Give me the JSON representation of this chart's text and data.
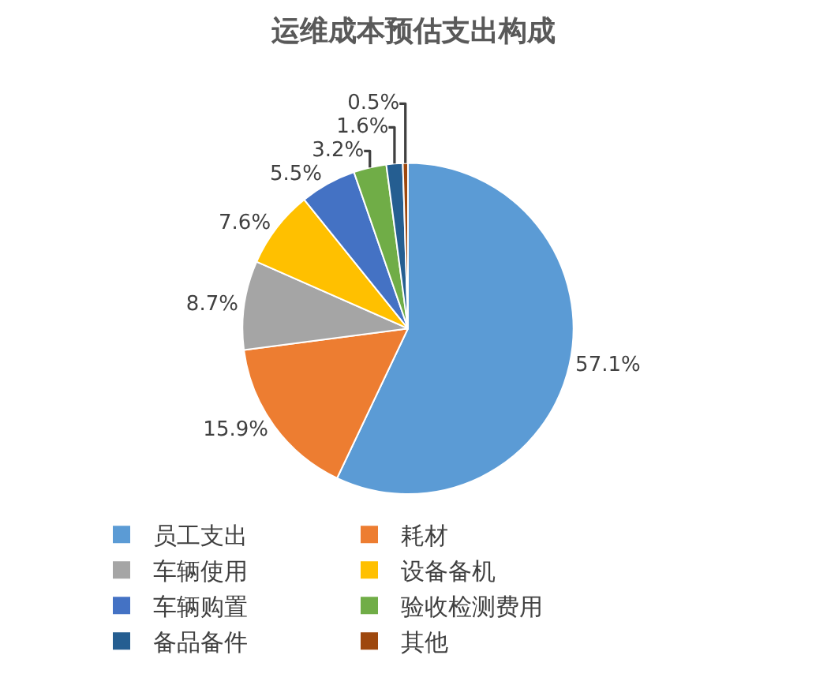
{
  "chart_data": {
    "type": "pie",
    "title": "运维成本预估支出构成",
    "categories": [
      "员工支出",
      "耗材",
      "车辆使用",
      "设备备机",
      "车辆购置",
      "验收检测费用",
      "备品备件",
      "其他"
    ],
    "values": [
      57.1,
      15.9,
      8.7,
      7.6,
      5.5,
      3.2,
      1.6,
      0.5
    ],
    "value_labels": [
      "57.1%",
      "15.9%",
      "8.7%",
      "7.6%",
      "5.5%",
      "3.2%",
      "1.6%",
      "0.5%"
    ],
    "colors": [
      "#5b9bd5",
      "#ed7d31",
      "#a5a5a5",
      "#ffc000",
      "#4472c4",
      "#70ad47",
      "#255e91",
      "#9e480e"
    ],
    "legend": "bottom"
  }
}
